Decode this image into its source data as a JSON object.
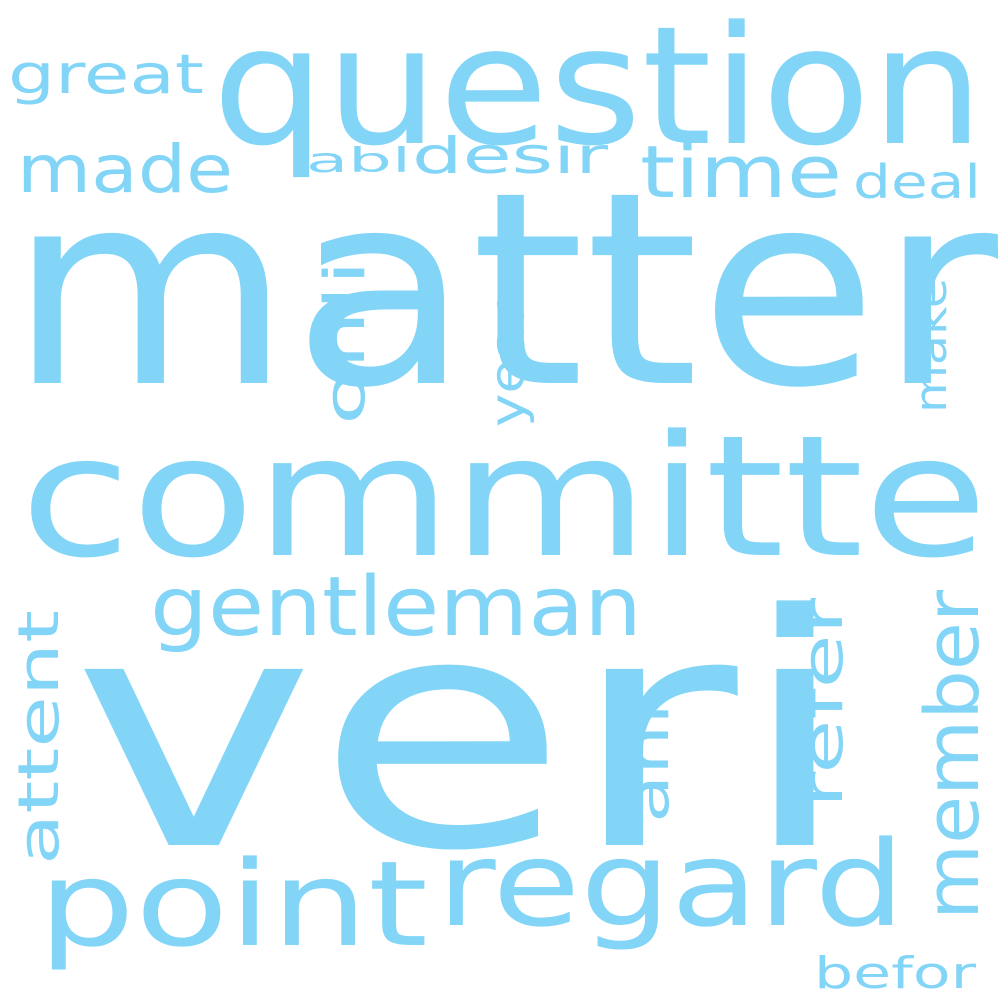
{
  "cloud": {
    "color": "#82D5F7",
    "background": "#ffffff",
    "words": {
      "matter": "matter",
      "veri": "veri",
      "committe": "committe",
      "question": "question",
      "point": "point",
      "regard": "regard",
      "gentleman": "gentleman",
      "member": "member",
      "time": "time",
      "made": "made",
      "great": "great",
      "desir": "desir",
      "abl": "abl",
      "deal": "deal",
      "onli": "onli",
      "year": "year",
      "make": "make",
      "attent": "attent",
      "refer": "refer",
      "ani": "ani",
      "befor": "befor"
    }
  }
}
